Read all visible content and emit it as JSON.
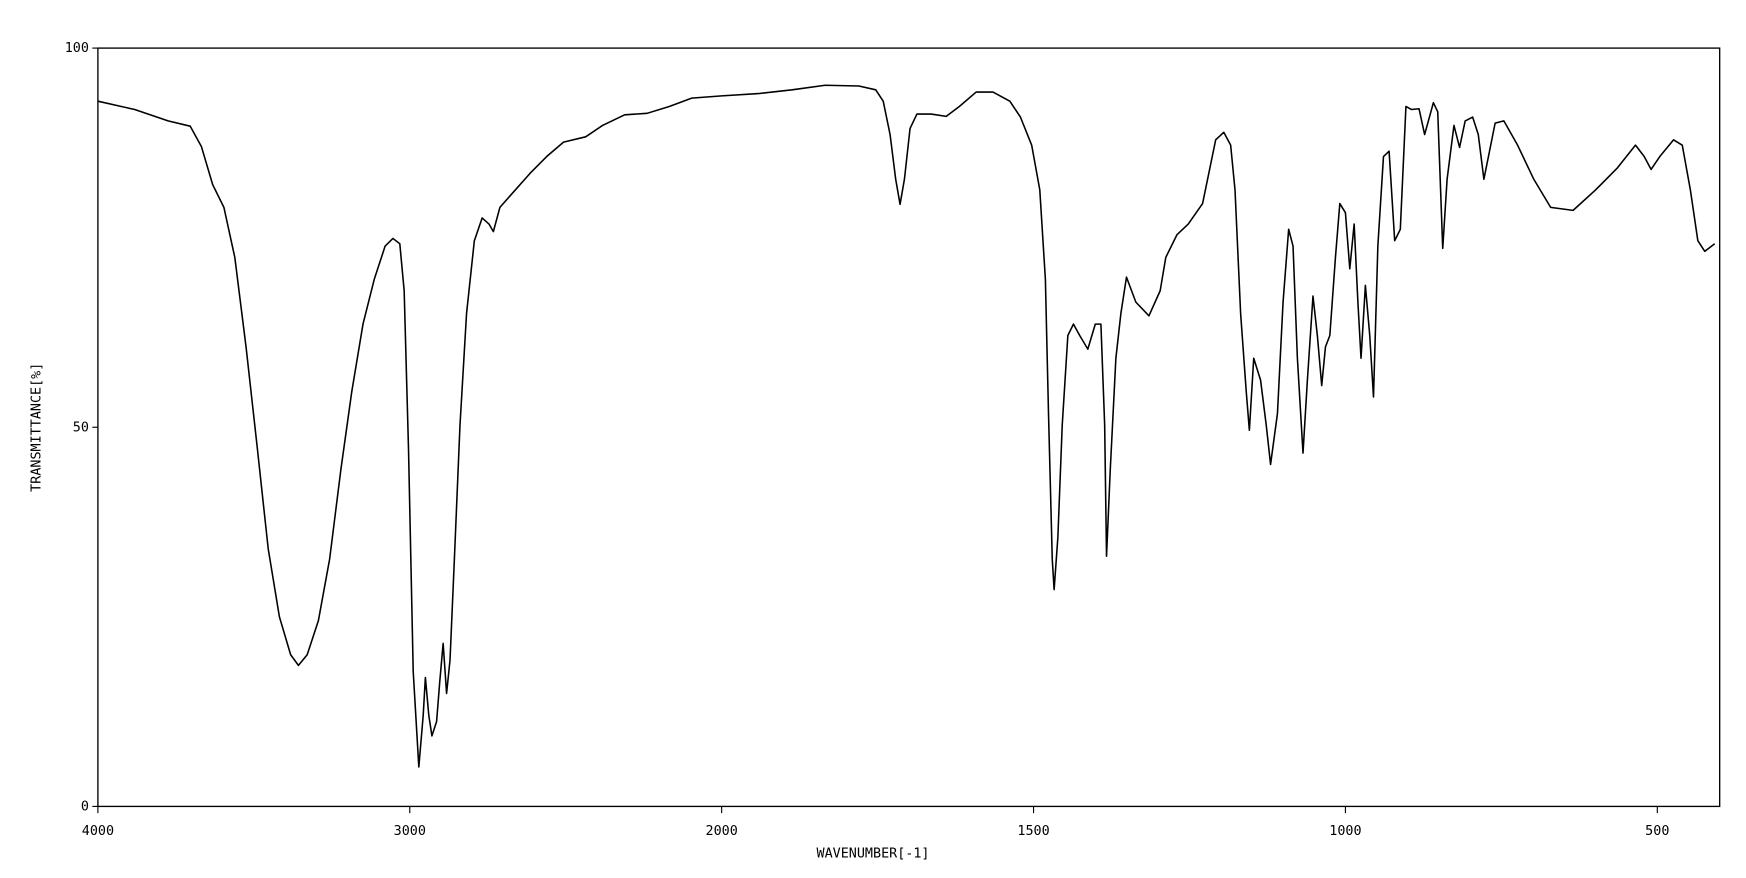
{
  "chart_data": {
    "type": "line",
    "xlabel": "WAVENUMBER[-1]",
    "ylabel": "TRANSMITTANCE[%]",
    "xlim": [
      4000,
      400
    ],
    "ylim": [
      0,
      100
    ],
    "xticks": [
      4000,
      3000,
      2000,
      1500,
      1000,
      500
    ],
    "yticks": [
      0,
      50,
      100
    ],
    "xscale": "split",
    "xsplit": 2000,
    "xsplit_stretch": 2,
    "color": "#000000",
    "x": [
      4000,
      3882,
      3775,
      3704,
      3668,
      3632,
      3596,
      3561,
      3525,
      3489,
      3454,
      3418,
      3382,
      3357,
      3329,
      3293,
      3257,
      3221,
      3186,
      3150,
      3114,
      3079,
      3054,
      3032,
      3018,
      3004,
      2989,
      2971,
      2957,
      2950,
      2939,
      2929,
      2914,
      2904,
      2893,
      2882,
      2871,
      2857,
      2839,
      2818,
      2793,
      2768,
      2746,
      2732,
      2711,
      2668,
      2614,
      2561,
      2507,
      2436,
      2382,
      2311,
      2239,
      2168,
      2096,
      2000,
      1941,
      1887,
      1834,
      1780,
      1753,
      1741,
      1730,
      1721,
      1714,
      1707,
      1698,
      1687,
      1664,
      1640,
      1619,
      1592,
      1565,
      1538,
      1521,
      1503,
      1490,
      1481,
      1476,
      1470,
      1467,
      1461,
      1454,
      1445,
      1436,
      1426,
      1413,
      1401,
      1392,
      1386,
      1383,
      1377,
      1368,
      1360,
      1351,
      1336,
      1315,
      1297,
      1288,
      1270,
      1252,
      1229,
      1208,
      1195,
      1184,
      1177,
      1168,
      1159,
      1154,
      1147,
      1136,
      1127,
      1120,
      1109,
      1100,
      1091,
      1084,
      1077,
      1068,
      1061,
      1052,
      1045,
      1038,
      1032,
      1025,
      1016,
      1009,
      1000,
      993,
      986,
      980,
      975,
      968,
      961,
      955,
      948,
      939,
      930,
      921,
      912,
      903,
      894,
      882,
      873,
      859,
      852,
      844,
      837,
      826,
      817,
      808,
      796,
      787,
      778,
      760,
      746,
      724,
      698,
      671,
      635,
      599,
      564,
      535,
      521,
      510,
      496,
      474,
      460,
      447,
      435,
      424,
      408
    ],
    "values": [
      93,
      91.9,
      90.4,
      89.7,
      87,
      82,
      79,
      72.4,
      60.6,
      47.3,
      34,
      25,
      20,
      18.6,
      20,
      24.5,
      32.6,
      44.4,
      54.7,
      63.6,
      69.5,
      73.9,
      74.9,
      74.2,
      68,
      47,
      17.8,
      5.2,
      12,
      17,
      12,
      9.3,
      11.2,
      16.4,
      21.5,
      14.9,
      19.3,
      32.6,
      50.3,
      65,
      74.6,
      77.6,
      76.8,
      75.8,
      79,
      81,
      83.5,
      85.7,
      87.6,
      88.3,
      89.8,
      91.2,
      91.4,
      92.3,
      93.4,
      93.7,
      94,
      94.5,
      95.1,
      95,
      94.5,
      93,
      88.6,
      82.7,
      79.4,
      82.7,
      89.4,
      91.3,
      91.3,
      91,
      92.3,
      94.2,
      94.2,
      93,
      90.9,
      87.2,
      81.3,
      69.5,
      51.8,
      32.6,
      28.6,
      35.5,
      50.3,
      62.1,
      63.6,
      62.1,
      60.3,
      63.6,
      63.6,
      50.3,
      33,
      44.4,
      59.1,
      65,
      69.8,
      66.5,
      64.7,
      68,
      72.4,
      75.4,
      76.8,
      79.5,
      87.9,
      88.9,
      87.2,
      81.3,
      65,
      54.7,
      49.6,
      59.1,
      56.2,
      50.3,
      45.1,
      51.8,
      66.5,
      76.1,
      73.9,
      59.1,
      46.6,
      56.2,
      67.3,
      62.1,
      55.5,
      60.6,
      62.1,
      72.4,
      79.5,
      78.3,
      70.9,
      76.8,
      66.5,
      59.1,
      68.7,
      62.1,
      54,
      73.9,
      85.7,
      86.4,
      74.6,
      76.1,
      92.3,
      91.9,
      92,
      88.6,
      92.8,
      91.6,
      73.6,
      82.7,
      89.8,
      86.9,
      90.4,
      90.9,
      88.6,
      82.7,
      90.1,
      90.4,
      87.2,
      82.7,
      79,
      78.6,
      81.3,
      84.2,
      87.2,
      85.7,
      84,
      85.7,
      87.9,
      87.2,
      81.3,
      74.6,
      73.2,
      74.2
    ]
  }
}
